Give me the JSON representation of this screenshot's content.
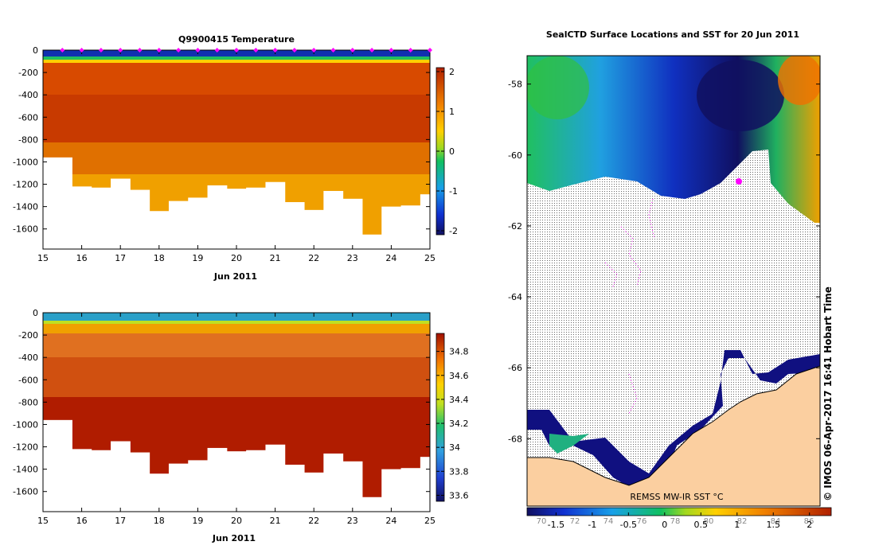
{
  "chart_data": [
    {
      "type": "heatmap",
      "title": "Q9900415  Temperature",
      "xlabel": "Jun 2011",
      "ylabel": "",
      "xticks": [
        "15",
        "16",
        "17",
        "18",
        "19",
        "20",
        "21",
        "22",
        "23",
        "24",
        "25"
      ],
      "xlim": [
        15,
        25
      ],
      "yticks": [
        "0",
        "-200",
        "-400",
        "-600",
        "-800",
        "-1000",
        "-1200",
        "-1400",
        "-1600"
      ],
      "ylim": [
        -1780,
        0
      ],
      "colorbar": {
        "ticks": [
          "2",
          "1",
          "0",
          "-1",
          "-2"
        ],
        "range": [
          -2.1,
          2.1
        ]
      },
      "profile_days": [
        15.5,
        16.0,
        16.5,
        17.0,
        17.5,
        18.0,
        18.5,
        19.0,
        19.5,
        20.0,
        20.5,
        21.0,
        21.5,
        22.0,
        22.5,
        23.0,
        23.5,
        24.0,
        24.5,
        25.0
      ],
      "profile_max_depth": [
        960,
        1220,
        1230,
        1150,
        1250,
        1440,
        1350,
        1320,
        1210,
        1240,
        1230,
        1180,
        1360,
        1430,
        1260,
        1330,
        1650,
        1400,
        1390,
        1290
      ]
    },
    {
      "type": "heatmap",
      "title": "",
      "xlabel": "Jun 2011",
      "ylabel": "",
      "xticks": [
        "15",
        "16",
        "17",
        "18",
        "19",
        "20",
        "21",
        "22",
        "23",
        "24",
        "25"
      ],
      "xlim": [
        15,
        25
      ],
      "yticks": [
        "0",
        "-200",
        "-400",
        "-600",
        "-800",
        "-1000",
        "-1200",
        "-1400",
        "-1600"
      ],
      "ylim": [
        -1780,
        0
      ],
      "colorbar": {
        "ticks": [
          "34.8",
          "34.6",
          "34.4",
          "34.2",
          "34",
          "33.8",
          "33.6"
        ],
        "range": [
          33.55,
          34.95
        ]
      },
      "profile_days": [
        15.5,
        16.0,
        16.5,
        17.0,
        17.5,
        18.0,
        18.5,
        19.0,
        19.5,
        20.0,
        20.5,
        21.0,
        21.5,
        22.0,
        22.5,
        23.0,
        23.5,
        24.0,
        24.5,
        25.0
      ],
      "profile_max_depth": [
        960,
        1220,
        1230,
        1150,
        1250,
        1440,
        1350,
        1320,
        1210,
        1240,
        1230,
        1180,
        1360,
        1430,
        1260,
        1330,
        1650,
        1400,
        1390,
        1290
      ]
    },
    {
      "type": "heatmap",
      "title": "SealCTD Surface Locations and SST for 20 Jun 2011",
      "xlabel": "",
      "ylabel": "",
      "yticks": [
        "-58",
        "-60",
        "-62",
        "-64",
        "-66",
        "-68"
      ],
      "ylim": [
        -69.9,
        -57.2
      ],
      "colorbar": {
        "ticks": [
          "-1.5",
          "-1",
          "-0.5",
          "0",
          "0.5",
          "1",
          "1.5",
          "2"
        ],
        "range": [
          -1.9,
          2.3
        ],
        "underlay_ticks": [
          "70",
          "72",
          "74",
          "76",
          "78",
          "80",
          "82",
          "84",
          "86"
        ]
      },
      "source_note": "REMSS MW-IR SST °C",
      "credit": "© IMOS 06-Apr-2017 16:41 Hobart Time"
    }
  ],
  "colors": {
    "land": "#fbcfa0",
    "coast": "#000000",
    "track": "#ff00ff",
    "dots": "#000000"
  }
}
